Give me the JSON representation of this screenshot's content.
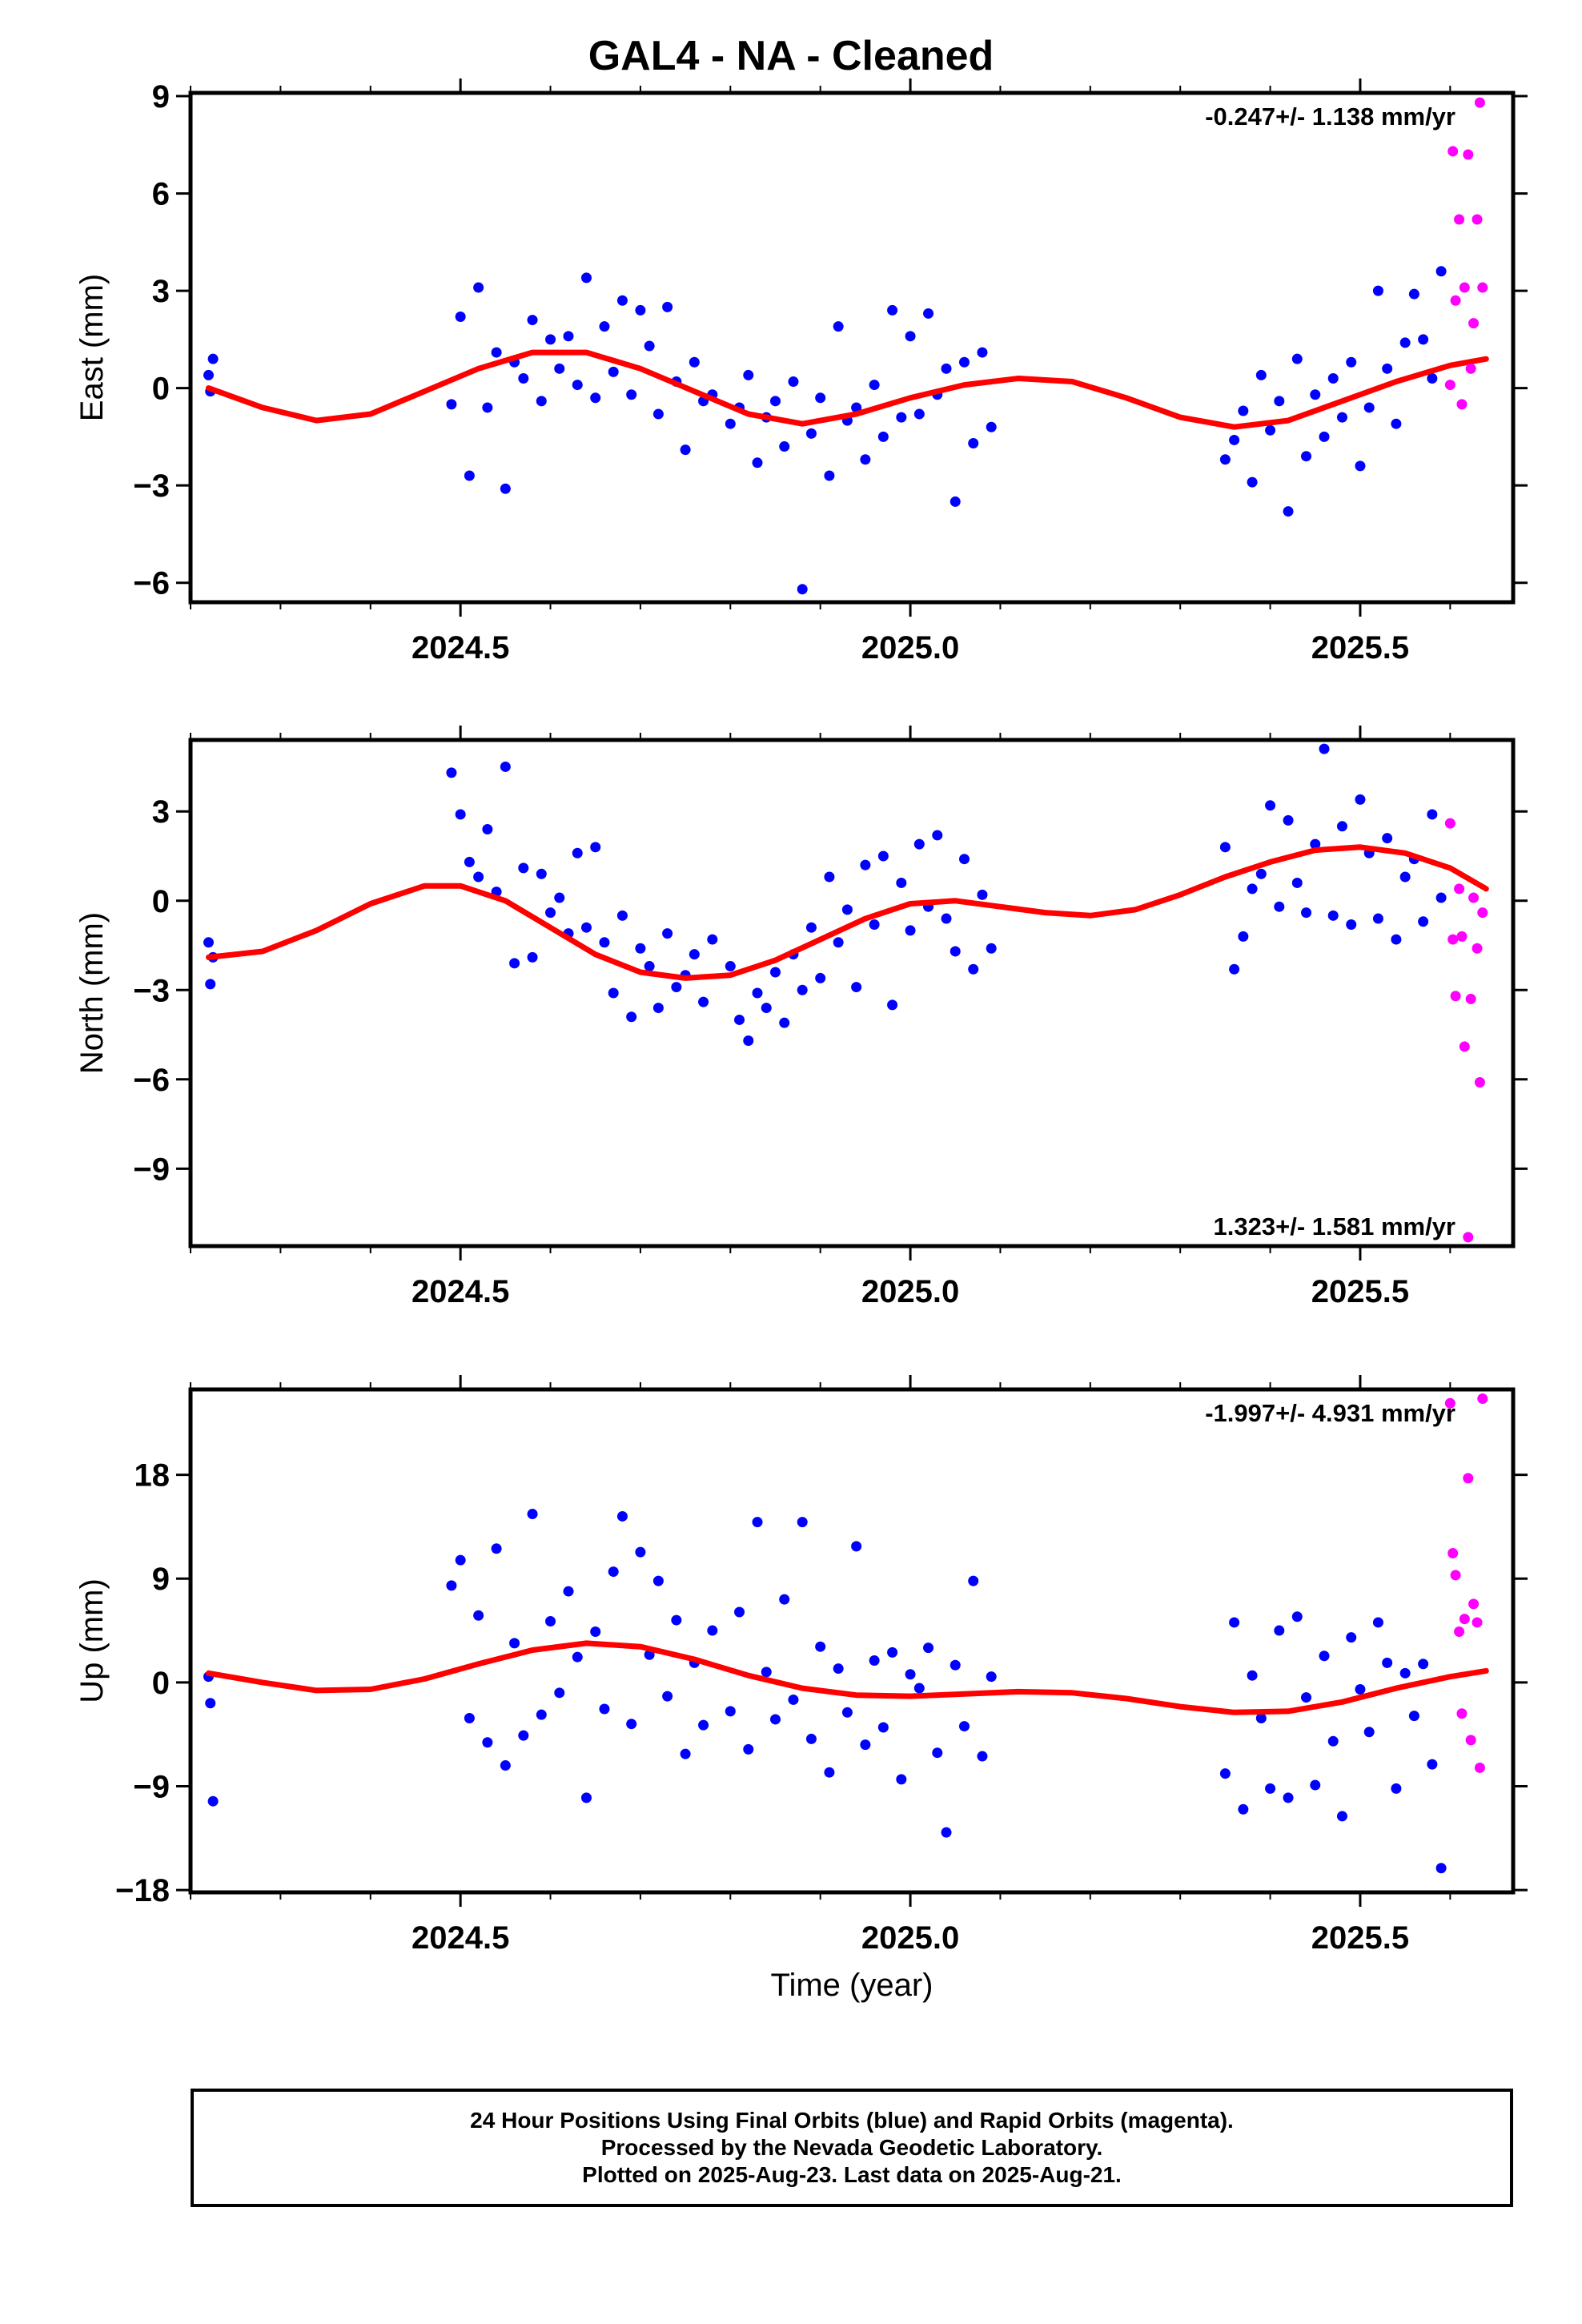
{
  "page": {
    "title": "GAL4  - NA - Cleaned",
    "xlabel": "Time (year)",
    "footer_lines": [
      "24 Hour Positions Using Final Orbits (blue) and Rapid Orbits (magenta).",
      "Processed by the Nevada Geodetic Laboratory.",
      "Plotted on 2025-Aug-23. Last data on 2025-Aug-21."
    ]
  },
  "colors": {
    "final": "#0000ff",
    "rapid": "#ff00ff",
    "model": "#ff0000",
    "axis": "#000000"
  },
  "chart_data": [
    {
      "type": "scatter",
      "ylabel": "East (mm)",
      "rate_label": "-0.247+/- 1.138 mm/yr",
      "rate_position": "top-right",
      "xlim": [
        2024.2,
        2025.67
      ],
      "ylim": [
        -6.6,
        9.1
      ],
      "xticks": [
        2024.5,
        2025.0,
        2025.5
      ],
      "xtick_labels": [
        "2024.5",
        "2025.0",
        "2025.5"
      ],
      "yticks": [
        -6,
        -3,
        0,
        3,
        6,
        9
      ],
      "ytick_labels": [
        "−6",
        "−3",
        "0",
        "3",
        "6",
        "9"
      ],
      "model": {
        "x": [
          2024.22,
          2024.28,
          2024.34,
          2024.4,
          2024.46,
          2024.52,
          2024.58,
          2024.64,
          2024.7,
          2024.76,
          2024.82,
          2024.88,
          2024.94,
          2025.0,
          2025.06,
          2025.12,
          2025.18,
          2025.24,
          2025.3,
          2025.36,
          2025.42,
          2025.48,
          2025.54,
          2025.6,
          2025.64
        ],
        "y": [
          0.0,
          -0.6,
          -1.0,
          -0.8,
          -0.1,
          0.6,
          1.1,
          1.1,
          0.6,
          -0.1,
          -0.8,
          -1.1,
          -0.8,
          -0.3,
          0.1,
          0.3,
          0.2,
          -0.3,
          -0.9,
          -1.2,
          -1.0,
          -0.4,
          0.2,
          0.7,
          0.9
        ]
      },
      "series": [
        {
          "name": "Final Orbits",
          "x": [
            2024.22,
            2024.222,
            2024.225,
            2024.49,
            2024.5,
            2024.51,
            2024.52,
            2024.53,
            2024.54,
            2024.55,
            2024.56,
            2024.57,
            2024.58,
            2024.59,
            2024.6,
            2024.61,
            2024.62,
            2024.63,
            2024.64,
            2024.65,
            2024.66,
            2024.67,
            2024.68,
            2024.69,
            2024.7,
            2024.71,
            2024.72,
            2024.73,
            2024.74,
            2024.75,
            2024.76,
            2024.77,
            2024.78,
            2024.8,
            2024.81,
            2024.82,
            2024.83,
            2024.84,
            2024.85,
            2024.86,
            2024.87,
            2024.88,
            2024.89,
            2024.9,
            2024.91,
            2024.92,
            2024.93,
            2024.94,
            2024.95,
            2024.96,
            2024.97,
            2024.98,
            2024.99,
            2025.0,
            2025.01,
            2025.02,
            2025.03,
            2025.04,
            2025.05,
            2025.06,
            2025.07,
            2025.08,
            2025.09,
            2025.35,
            2025.36,
            2025.37,
            2025.38,
            2025.39,
            2025.4,
            2025.41,
            2025.42,
            2025.43,
            2025.44,
            2025.45,
            2025.46,
            2025.47,
            2025.48,
            2025.49,
            2025.5,
            2025.51,
            2025.52,
            2025.53,
            2025.54,
            2025.55,
            2025.56,
            2025.57,
            2025.58,
            2025.59
          ],
          "y": [
            0.4,
            -0.1,
            0.9,
            -0.5,
            2.2,
            -2.7,
            3.1,
            -0.6,
            1.1,
            -3.1,
            0.8,
            0.3,
            2.1,
            -0.4,
            1.5,
            0.6,
            1.6,
            0.1,
            3.4,
            -0.3,
            1.9,
            0.5,
            2.7,
            -0.2,
            2.4,
            1.3,
            -0.8,
            2.5,
            0.2,
            -1.9,
            0.8,
            -0.4,
            -0.2,
            -1.1,
            -0.6,
            0.4,
            -2.3,
            -0.9,
            -0.4,
            -1.8,
            0.2,
            -6.2,
            -1.4,
            -0.3,
            -2.7,
            1.9,
            -1.0,
            -0.6,
            -2.2,
            0.1,
            -1.5,
            2.4,
            -0.9,
            1.6,
            -0.8,
            2.3,
            -0.2,
            0.6,
            -3.5,
            0.8,
            -1.7,
            1.1,
            -1.2,
            -2.2,
            -1.6,
            -0.7,
            -2.9,
            0.4,
            -1.3,
            -0.4,
            -3.8,
            0.9,
            -2.1,
            -0.2,
            -1.5,
            0.3,
            -0.9,
            0.8,
            -2.4,
            -0.6,
            3.0,
            0.6,
            -1.1,
            1.4,
            2.9,
            1.5,
            0.3,
            3.6
          ]
        },
        {
          "name": "Rapid Orbits",
          "x": [
            2025.6,
            2025.603,
            2025.606,
            2025.61,
            2025.613,
            2025.616,
            2025.62,
            2025.623,
            2025.626,
            2025.63,
            2025.633,
            2025.636
          ],
          "y": [
            0.1,
            7.3,
            2.7,
            5.2,
            -0.5,
            3.1,
            7.2,
            0.6,
            2.0,
            5.2,
            8.8,
            3.1
          ]
        }
      ]
    },
    {
      "type": "scatter",
      "ylabel": "North (mm)",
      "rate_label": "1.323+/- 1.581 mm/yr",
      "rate_position": "bottom-right",
      "xlim": [
        2024.2,
        2025.67
      ],
      "ylim": [
        -11.6,
        5.4
      ],
      "xticks": [
        2024.5,
        2025.0,
        2025.5
      ],
      "xtick_labels": [
        "2024.5",
        "2025.0",
        "2025.5"
      ],
      "yticks": [
        -9,
        -6,
        -3,
        0,
        3
      ],
      "ytick_labels": [
        "−9",
        "−6",
        "−3",
        "0",
        "3"
      ],
      "model": {
        "x": [
          2024.22,
          2024.28,
          2024.34,
          2024.4,
          2024.46,
          2024.5,
          2024.55,
          2024.6,
          2024.65,
          2024.7,
          2024.75,
          2024.8,
          2024.85,
          2024.9,
          2024.95,
          2025.0,
          2025.05,
          2025.1,
          2025.15,
          2025.2,
          2025.25,
          2025.3,
          2025.35,
          2025.4,
          2025.45,
          2025.5,
          2025.55,
          2025.6,
          2025.64
        ],
        "y": [
          -1.9,
          -1.7,
          -1.0,
          -0.1,
          0.5,
          0.5,
          0.0,
          -0.9,
          -1.8,
          -2.4,
          -2.6,
          -2.5,
          -2.0,
          -1.3,
          -0.6,
          -0.1,
          0.0,
          -0.2,
          -0.4,
          -0.5,
          -0.3,
          0.2,
          0.8,
          1.3,
          1.7,
          1.8,
          1.6,
          1.1,
          0.4
        ]
      },
      "series": [
        {
          "name": "Final Orbits",
          "x": [
            2024.22,
            2024.222,
            2024.225,
            2024.49,
            2024.5,
            2024.51,
            2024.52,
            2024.53,
            2024.54,
            2024.55,
            2024.56,
            2024.57,
            2024.58,
            2024.59,
            2024.6,
            2024.61,
            2024.62,
            2024.63,
            2024.64,
            2024.65,
            2024.66,
            2024.67,
            2024.68,
            2024.69,
            2024.7,
            2024.71,
            2024.72,
            2024.73,
            2024.74,
            2024.75,
            2024.76,
            2024.77,
            2024.78,
            2024.8,
            2024.81,
            2024.82,
            2024.83,
            2024.84,
            2024.85,
            2024.86,
            2024.87,
            2024.88,
            2024.89,
            2024.9,
            2024.91,
            2024.92,
            2024.93,
            2024.94,
            2024.95,
            2024.96,
            2024.97,
            2024.98,
            2024.99,
            2025.0,
            2025.01,
            2025.02,
            2025.03,
            2025.04,
            2025.05,
            2025.06,
            2025.07,
            2025.08,
            2025.09,
            2025.35,
            2025.36,
            2025.37,
            2025.38,
            2025.39,
            2025.4,
            2025.41,
            2025.42,
            2025.43,
            2025.44,
            2025.45,
            2025.46,
            2025.47,
            2025.48,
            2025.49,
            2025.5,
            2025.51,
            2025.52,
            2025.53,
            2025.54,
            2025.55,
            2025.56,
            2025.57,
            2025.58,
            2025.59
          ],
          "y": [
            -1.4,
            -2.8,
            -1.9,
            4.3,
            2.9,
            1.3,
            0.8,
            2.4,
            0.3,
            4.5,
            -2.1,
            1.1,
            -1.9,
            0.9,
            -0.4,
            0.1,
            -1.1,
            1.6,
            -0.9,
            1.8,
            -1.4,
            -3.1,
            -0.5,
            -3.9,
            -1.6,
            -2.2,
            -3.6,
            -1.1,
            -2.9,
            -2.5,
            -1.8,
            -3.4,
            -1.3,
            -2.2,
            -4.0,
            -4.7,
            -3.1,
            -3.6,
            -2.4,
            -4.1,
            -1.8,
            -3.0,
            -0.9,
            -2.6,
            0.8,
            -1.4,
            -0.3,
            -2.9,
            1.2,
            -0.8,
            1.5,
            -3.5,
            0.6,
            -1.0,
            1.9,
            -0.2,
            2.2,
            -0.6,
            -1.7,
            1.4,
            -2.3,
            0.2,
            -1.6,
            1.8,
            -2.3,
            -1.2,
            0.4,
            0.9,
            3.2,
            -0.2,
            2.7,
            0.6,
            -0.4,
            1.9,
            5.1,
            -0.5,
            2.5,
            -0.8,
            3.4,
            1.6,
            -0.6,
            2.1,
            -1.3,
            0.8,
            1.4,
            -0.7,
            2.9,
            0.1
          ]
        },
        {
          "name": "Rapid Orbits",
          "x": [
            2025.6,
            2025.603,
            2025.606,
            2025.61,
            2025.613,
            2025.616,
            2025.62,
            2025.623,
            2025.626,
            2025.63,
            2025.633,
            2025.636
          ],
          "y": [
            2.6,
            -1.3,
            -3.2,
            0.4,
            -1.2,
            -4.9,
            -11.3,
            -3.3,
            0.1,
            -1.6,
            -6.1,
            -0.4
          ]
        }
      ]
    },
    {
      "type": "scatter",
      "ylabel": "Up (mm)",
      "rate_label": "-1.997+/- 4.931 mm/yr",
      "rate_position": "top-right",
      "xlim": [
        2024.2,
        2025.67
      ],
      "ylim": [
        -18.2,
        25.4
      ],
      "xticks": [
        2024.5,
        2025.0,
        2025.5
      ],
      "xtick_labels": [
        "2024.5",
        "2025.0",
        "2025.5"
      ],
      "yticks": [
        -18,
        -9,
        0,
        9,
        18
      ],
      "ytick_labels": [
        "−18",
        "−9",
        "0",
        "9",
        "18"
      ],
      "model": {
        "x": [
          2024.22,
          2024.28,
          2024.34,
          2024.4,
          2024.46,
          2024.52,
          2024.58,
          2024.64,
          2024.7,
          2024.76,
          2024.82,
          2024.88,
          2024.94,
          2025.0,
          2025.06,
          2025.12,
          2025.18,
          2025.24,
          2025.3,
          2025.36,
          2025.42,
          2025.48,
          2025.54,
          2025.6,
          2025.64
        ],
        "y": [
          0.8,
          0.0,
          -0.7,
          -0.6,
          0.3,
          1.6,
          2.8,
          3.4,
          3.1,
          2.0,
          0.6,
          -0.5,
          -1.1,
          -1.2,
          -1.0,
          -0.8,
          -0.9,
          -1.4,
          -2.1,
          -2.6,
          -2.5,
          -1.7,
          -0.5,
          0.5,
          1.0
        ]
      },
      "series": [
        {
          "name": "Final Orbits",
          "x": [
            2024.22,
            2024.222,
            2024.225,
            2024.49,
            2024.5,
            2024.51,
            2024.52,
            2024.53,
            2024.54,
            2024.55,
            2024.56,
            2024.57,
            2024.58,
            2024.59,
            2024.6,
            2024.61,
            2024.62,
            2024.63,
            2024.64,
            2024.65,
            2024.66,
            2024.67,
            2024.68,
            2024.69,
            2024.7,
            2024.71,
            2024.72,
            2024.73,
            2024.74,
            2024.75,
            2024.76,
            2024.77,
            2024.78,
            2024.8,
            2024.81,
            2024.82,
            2024.83,
            2024.84,
            2024.85,
            2024.86,
            2024.87,
            2024.88,
            2024.89,
            2024.9,
            2024.91,
            2024.92,
            2024.93,
            2024.94,
            2024.95,
            2024.96,
            2024.97,
            2024.98,
            2024.99,
            2025.0,
            2025.01,
            2025.02,
            2025.03,
            2025.04,
            2025.05,
            2025.06,
            2025.07,
            2025.08,
            2025.09,
            2025.35,
            2025.36,
            2025.37,
            2025.38,
            2025.39,
            2025.4,
            2025.41,
            2025.42,
            2025.43,
            2025.44,
            2025.45,
            2025.46,
            2025.47,
            2025.48,
            2025.49,
            2025.5,
            2025.51,
            2025.52,
            2025.53,
            2025.54,
            2025.55,
            2025.56,
            2025.57,
            2025.58,
            2025.59
          ],
          "y": [
            0.5,
            -1.8,
            -10.3,
            8.4,
            10.6,
            -3.1,
            5.8,
            -5.2,
            11.6,
            -7.2,
            3.4,
            -4.6,
            14.6,
            -2.8,
            5.3,
            -0.9,
            7.9,
            2.2,
            -10.0,
            4.4,
            -2.3,
            9.6,
            14.4,
            -3.6,
            11.3,
            2.4,
            8.8,
            -1.2,
            5.4,
            -6.2,
            1.7,
            -3.7,
            4.5,
            -2.5,
            6.1,
            -5.8,
            13.9,
            0.9,
            -3.2,
            7.2,
            -1.5,
            13.9,
            -4.9,
            3.1,
            -7.8,
            1.2,
            -2.6,
            11.8,
            -5.4,
            1.9,
            -3.9,
            2.6,
            -8.4,
            0.7,
            -0.5,
            3.0,
            -6.1,
            -13.0,
            1.5,
            -3.8,
            8.8,
            -6.4,
            0.5,
            -7.9,
            5.2,
            -11.0,
            0.6,
            -3.1,
            -9.2,
            4.5,
            -10.0,
            5.7,
            -1.3,
            -8.9,
            2.3,
            -5.1,
            -11.6,
            3.9,
            -0.6,
            -4.3,
            5.2,
            1.7,
            -9.2,
            0.8,
            -2.9,
            1.6,
            -7.1,
            -16.1
          ]
        },
        {
          "name": "Rapid Orbits",
          "x": [
            2025.6,
            2025.603,
            2025.606,
            2025.61,
            2025.613,
            2025.616,
            2025.62,
            2025.623,
            2025.626,
            2025.63,
            2025.633,
            2025.636
          ],
          "y": [
            24.2,
            11.2,
            9.3,
            4.4,
            -2.7,
            5.5,
            17.7,
            -5.0,
            6.8,
            5.2,
            -7.4,
            24.6
          ]
        }
      ]
    }
  ]
}
